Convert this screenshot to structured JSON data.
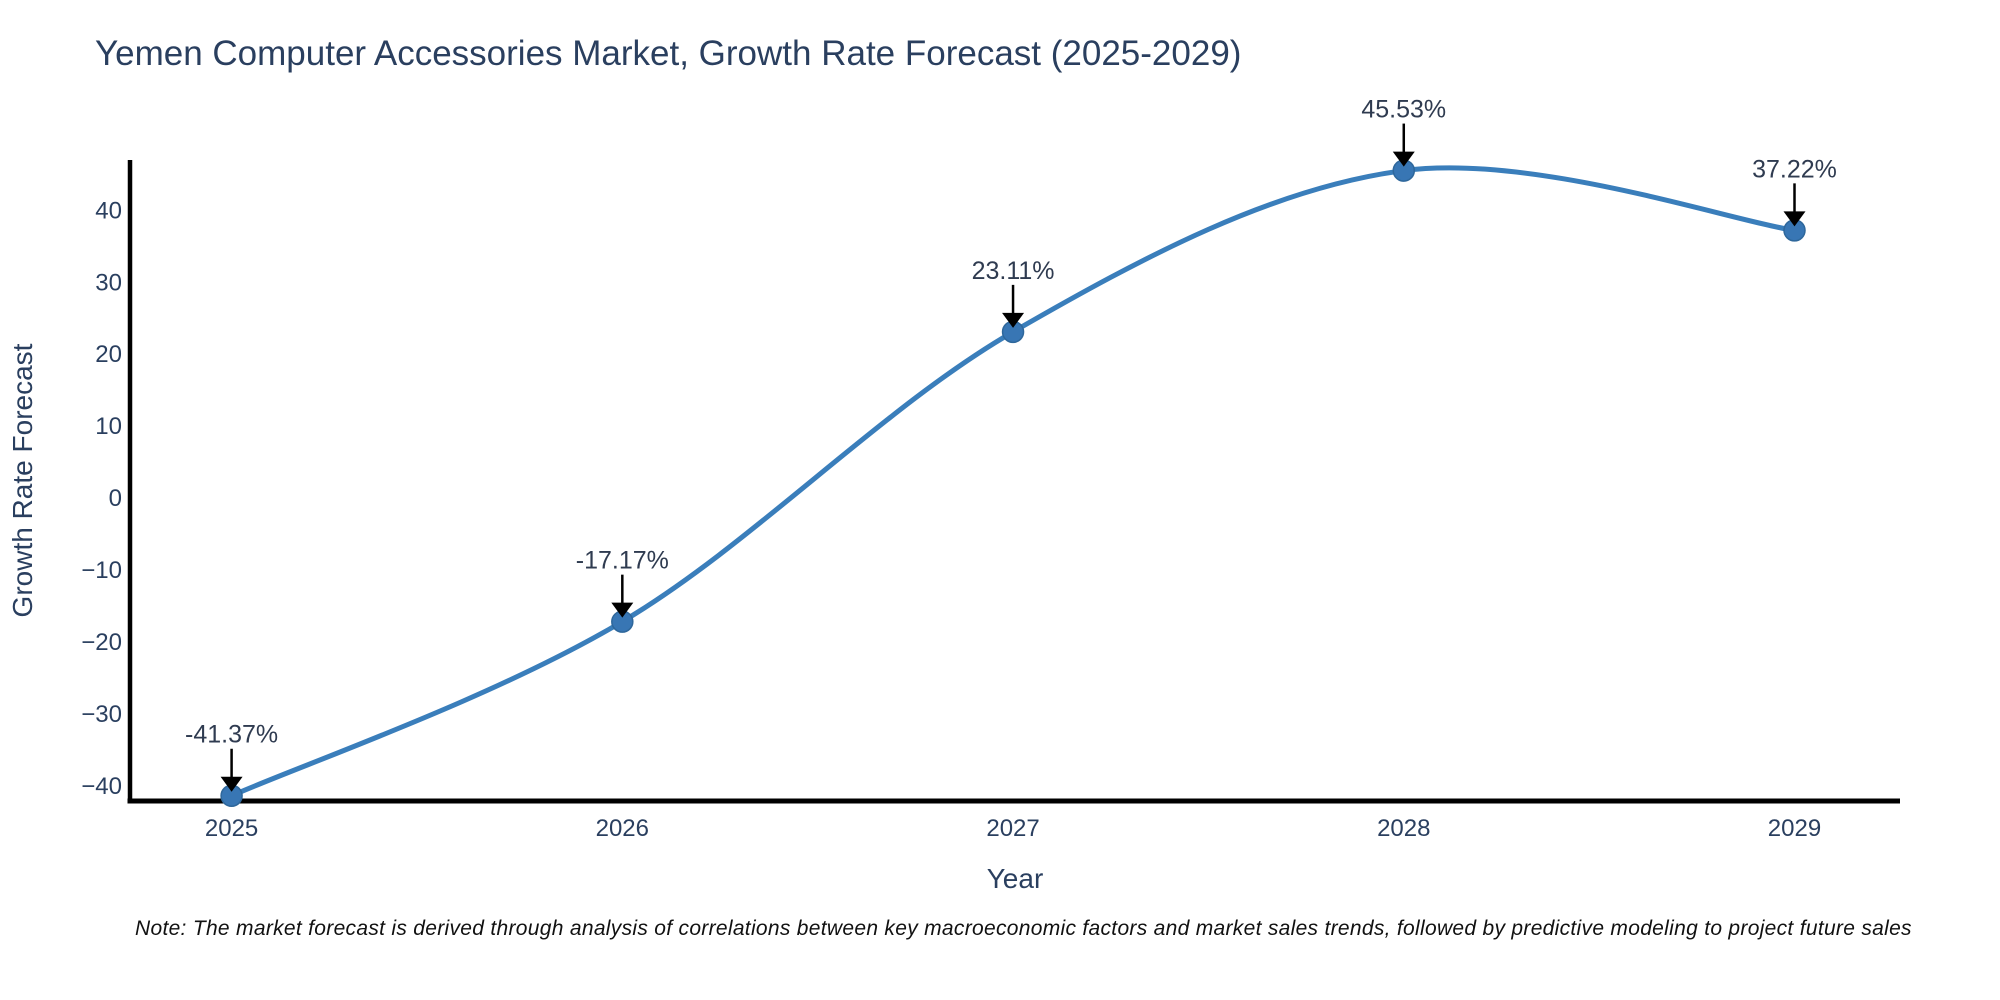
{
  "title": "Yemen Computer Accessories Market, Growth Rate Forecast (2025-2029)",
  "note": "Note: The market forecast is derived through analysis of correlations between key macroeconomic factors and market sales trends, followed by predictive modeling to project future sales",
  "chart_data": {
    "type": "line",
    "title": "Yemen Computer Accessories Market, Growth Rate Forecast (2025-2029)",
    "x": [
      2025,
      2026,
      2027,
      2028,
      2029
    ],
    "series": [
      {
        "name": "Growth Rate Forecast",
        "values": [
          -41.37,
          -17.17,
          23.11,
          45.53,
          37.22
        ]
      }
    ],
    "point_labels": [
      "-41.37%",
      "-17.17%",
      "23.11%",
      "45.53%",
      "37.22%"
    ],
    "xlabel": "Year",
    "ylabel": "Growth Rate Forecast",
    "xticks": [
      2025,
      2026,
      2027,
      2028,
      2029
    ],
    "yticks": [
      40,
      30,
      20,
      10,
      0,
      -10,
      -20,
      -30,
      -40
    ],
    "xlim": [
      2024.74,
      2029.27
    ],
    "ylim": [
      -42.1,
      47.0
    ],
    "line_shape": "spline",
    "grid": false,
    "legend": false,
    "colors": {
      "line": "#3a7ebb",
      "marker": "#3876b4",
      "marker_edge": "#2e679b",
      "axis": "#000000",
      "tick_text": "#2a3f5f",
      "annotation_text": "#2f3b50",
      "arrow": "#000000",
      "note_text": "#111111",
      "background": "#ffffff"
    }
  }
}
